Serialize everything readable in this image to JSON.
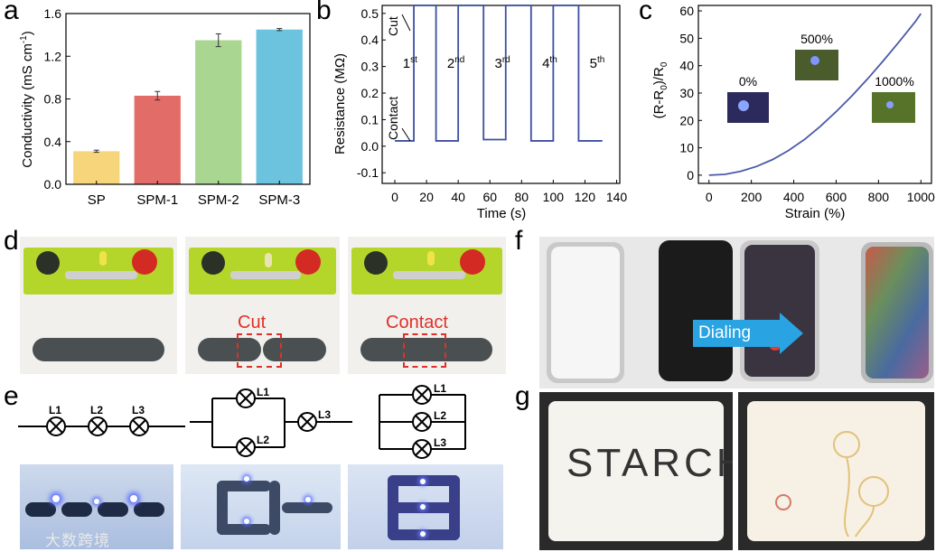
{
  "panels": {
    "a": "a",
    "b": "b",
    "c": "c",
    "d": "d",
    "e": "e",
    "f": "f",
    "g": "g"
  },
  "chart_data": [
    {
      "id": "a",
      "type": "bar",
      "categories": [
        "SP",
        "SPM-1",
        "SPM-2",
        "SPM-3"
      ],
      "values": [
        0.31,
        0.83,
        1.35,
        1.45
      ],
      "errors": [
        0.01,
        0.04,
        0.06,
        0.01
      ],
      "colors": [
        "#f7d57a",
        "#e26d68",
        "#a9d690",
        "#6cc3de"
      ],
      "ylabel": "Conductivity (mS cm",
      "ylabel_sup": "-1",
      "ylabel_close": ")",
      "ylim": [
        0,
        1.6
      ],
      "yticks": [
        "0.0",
        "0.4",
        "0.8",
        "1.2",
        "1.6"
      ],
      "xlabel": ""
    },
    {
      "id": "b",
      "type": "line",
      "ylabel": "Resistance (MΩ)",
      "xlabel": "Time (s)",
      "xlim": [
        -8,
        142
      ],
      "ylim": [
        -0.14,
        0.53
      ],
      "xticks": [
        "0",
        "20",
        "40",
        "60",
        "80",
        "100",
        "120",
        "140"
      ],
      "yticks": [
        "-0.1",
        "0.0",
        "0.1",
        "0.2",
        "0.3",
        "0.4",
        "0.5"
      ],
      "series": [
        {
          "name": "resistance",
          "x": [
            0,
            12,
            12,
            26,
            26,
            40,
            40,
            56,
            56,
            70,
            70,
            86,
            86,
            100,
            100,
            116,
            116,
            131
          ],
          "y": [
            0.02,
            0.02,
            0.53,
            0.53,
            0.02,
            0.02,
            0.53,
            0.53,
            0.025,
            0.025,
            0.53,
            0.53,
            0.02,
            0.02,
            0.53,
            0.53,
            0.02,
            0.02
          ],
          "color": "#3d4fa0"
        }
      ],
      "cycle_labels": [
        {
          "base": "1",
          "sup": "st",
          "x": 5
        },
        {
          "base": "2",
          "sup": "nd",
          "x": 33
        },
        {
          "base": "3",
          "sup": "rd",
          "x": 63
        },
        {
          "base": "4",
          "sup": "th",
          "x": 93
        },
        {
          "base": "5",
          "sup": "th",
          "x": 123
        }
      ],
      "annotations": {
        "cut": "Cut",
        "contact": "Contact"
      }
    },
    {
      "id": "c",
      "type": "line",
      "ylabel_parts": [
        "(R-R",
        "0",
        ")/R",
        "0"
      ],
      "xlabel": "Strain (%)",
      "xlim": [
        -50,
        1050
      ],
      "ylim": [
        -3,
        62
      ],
      "xticks": [
        "0",
        "200",
        "400",
        "600",
        "800",
        "1000"
      ],
      "yticks": [
        "0",
        "10",
        "20",
        "30",
        "40",
        "50",
        "60"
      ],
      "series": [
        {
          "name": "relative resistance",
          "x": [
            0,
            75,
            150,
            225,
            300,
            375,
            450,
            525,
            600,
            675,
            750,
            825,
            900,
            975,
            1000
          ],
          "y": [
            0,
            0.3,
            1.4,
            3.2,
            5.7,
            9.0,
            13.0,
            17.8,
            23.2,
            29.0,
            35.3,
            42.0,
            49.0,
            56.2,
            59
          ]
        }
      ],
      "insets": [
        "0%",
        "500%",
        "1000%"
      ]
    }
  ],
  "photos": {
    "d": {
      "cut_label": "Cut",
      "contact_label": "Contact"
    },
    "e": {
      "lamps_series": [
        "L1",
        "L2",
        "L3"
      ],
      "lamps_parallel": [
        "L1",
        "L2",
        "L3"
      ],
      "lamps_all": [
        "L1",
        "L2",
        "L3"
      ]
    },
    "f": {
      "dialing_label": "Dialing"
    },
    "g": {
      "handwriting": "STARCH"
    }
  },
  "watermark": "大数跨境"
}
